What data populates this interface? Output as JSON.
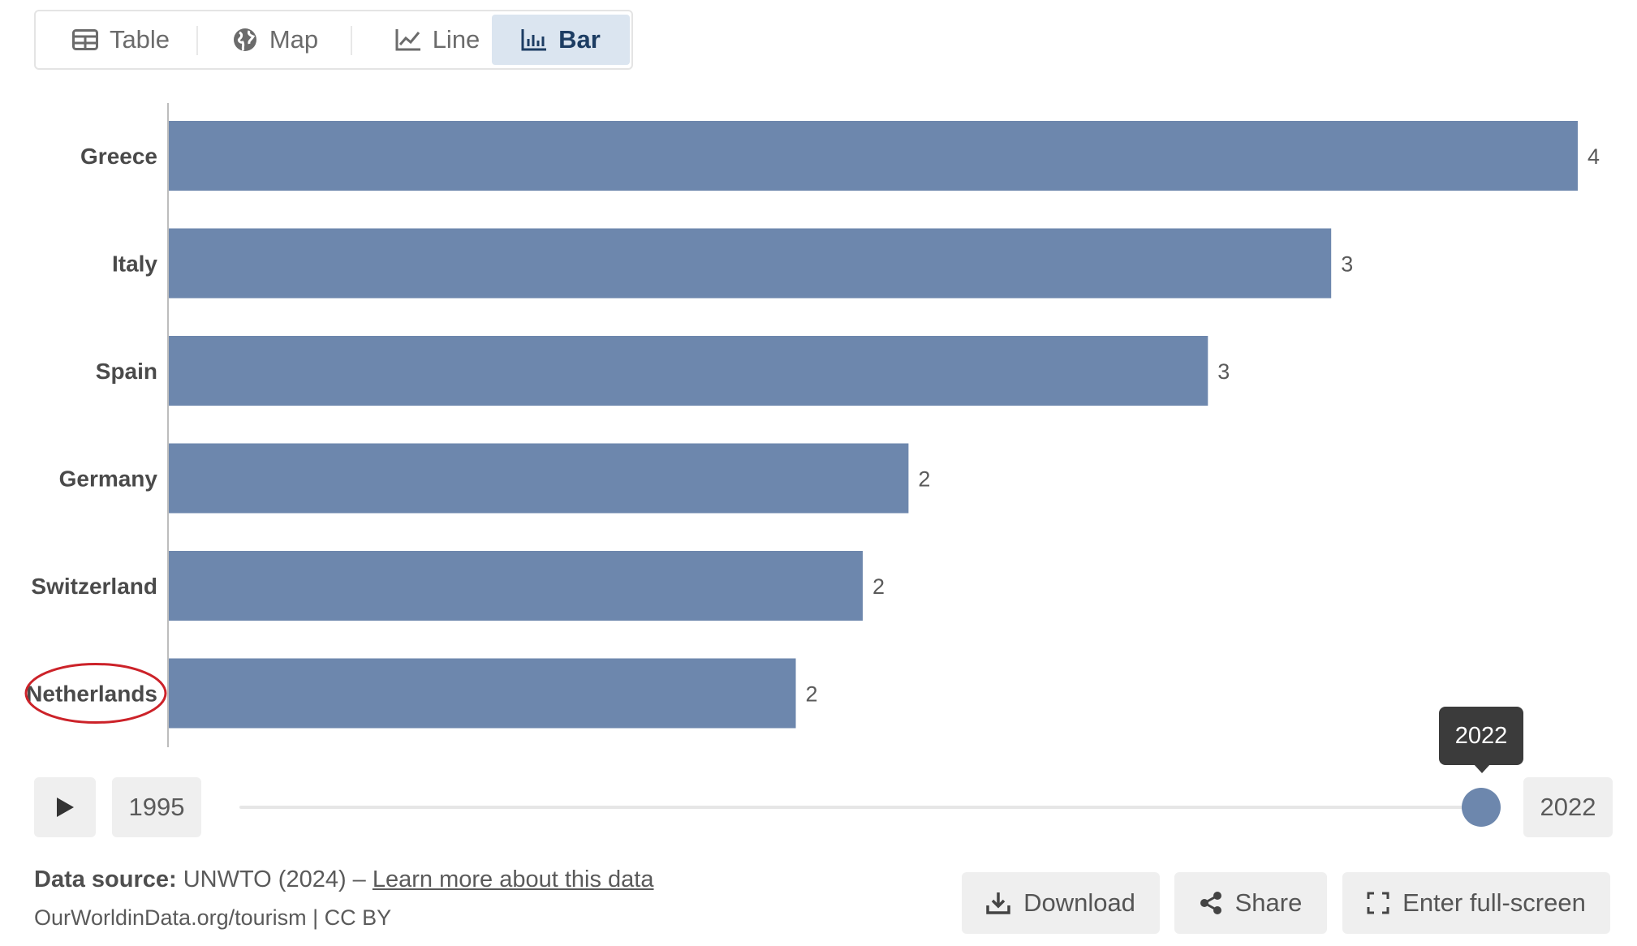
{
  "tabs": [
    {
      "label": "Table",
      "icon": "table-icon"
    },
    {
      "label": "Map",
      "icon": "globe-icon"
    },
    {
      "label": "Line",
      "icon": "line-chart-icon"
    },
    {
      "label": "Bar",
      "icon": "bar-chart-icon",
      "active": true
    }
  ],
  "chart_data": {
    "type": "bar",
    "orientation": "horizontal",
    "categories": [
      "Greece",
      "Italy",
      "Spain",
      "Germany",
      "Switzerland",
      "Netherlands"
    ],
    "values": [
      4,
      3.3,
      2.95,
      2.1,
      1.97,
      1.78
    ],
    "value_labels": [
      "4",
      "3",
      "3",
      "2",
      "2",
      "2"
    ],
    "bar_color": "#6d87ad",
    "highlighted_category": "Netherlands",
    "highlight_color": "#cc2229",
    "xlim": [
      0,
      4
    ]
  },
  "timeline": {
    "start_year": "1995",
    "end_year": "2022",
    "selected_year": "2022",
    "progress": 1.0
  },
  "footer": {
    "source_label": "Data source:",
    "source_text": "UNWTO (2024) –",
    "learn_more": "Learn more about this data",
    "credit": "OurWorldinData.org/tourism | CC BY"
  },
  "actions": {
    "download": "Download",
    "share": "Share",
    "fullscreen": "Enter full-screen"
  }
}
